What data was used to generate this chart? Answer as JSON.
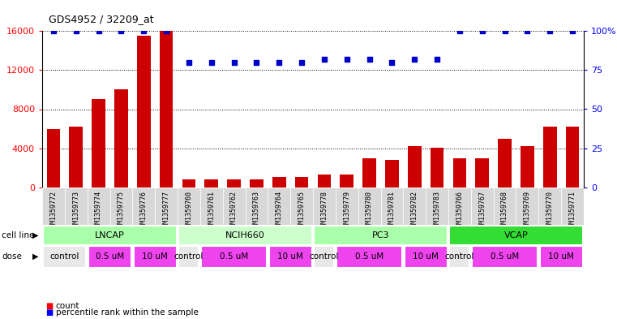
{
  "title": "GDS4952 / 32209_at",
  "samples": [
    "GSM1359772",
    "GSM1359773",
    "GSM1359774",
    "GSM1359775",
    "GSM1359776",
    "GSM1359777",
    "GSM1359760",
    "GSM1359761",
    "GSM1359762",
    "GSM1359763",
    "GSM1359764",
    "GSM1359765",
    "GSM1359778",
    "GSM1359779",
    "GSM1359780",
    "GSM1359781",
    "GSM1359782",
    "GSM1359783",
    "GSM1359766",
    "GSM1359767",
    "GSM1359768",
    "GSM1359769",
    "GSM1359770",
    "GSM1359771"
  ],
  "counts": [
    6000,
    6200,
    9000,
    10000,
    15500,
    16000,
    800,
    800,
    800,
    800,
    1100,
    1100,
    1300,
    1300,
    3000,
    2800,
    4200,
    4100,
    3000,
    3000,
    5000,
    4200,
    6200,
    6200
  ],
  "percentile_ranks": [
    100,
    100,
    100,
    100,
    100,
    100,
    80,
    80,
    80,
    80,
    80,
    80,
    82,
    82,
    82,
    80,
    82,
    82,
    100,
    100,
    100,
    100,
    100,
    100
  ],
  "cell_lines": [
    {
      "name": "LNCAP",
      "start": 0,
      "end": 6,
      "color": "#AAFFAA"
    },
    {
      "name": "NCIH660",
      "start": 6,
      "end": 12,
      "color": "#CCFFCC"
    },
    {
      "name": "PC3",
      "start": 12,
      "end": 18,
      "color": "#AAFFAA"
    },
    {
      "name": "VCAP",
      "start": 18,
      "end": 24,
      "color": "#33DD33"
    }
  ],
  "dose_groups": [
    {
      "label": "control",
      "start": 0,
      "end": 2,
      "color": "#E8E8E8"
    },
    {
      "label": "0.5 uM",
      "start": 2,
      "end": 4,
      "color": "#EE44EE"
    },
    {
      "label": "10 uM",
      "start": 4,
      "end": 6,
      "color": "#EE44EE"
    },
    {
      "label": "control",
      "start": 6,
      "end": 7,
      "color": "#E8E8E8"
    },
    {
      "label": "0.5 uM",
      "start": 7,
      "end": 10,
      "color": "#EE44EE"
    },
    {
      "label": "10 uM",
      "start": 10,
      "end": 12,
      "color": "#EE44EE"
    },
    {
      "label": "control",
      "start": 12,
      "end": 13,
      "color": "#E8E8E8"
    },
    {
      "label": "0.5 uM",
      "start": 13,
      "end": 16,
      "color": "#EE44EE"
    },
    {
      "label": "10 uM",
      "start": 16,
      "end": 18,
      "color": "#EE44EE"
    },
    {
      "label": "control",
      "start": 18,
      "end": 19,
      "color": "#E8E8E8"
    },
    {
      "label": "0.5 uM",
      "start": 19,
      "end": 22,
      "color": "#EE44EE"
    },
    {
      "label": "10 uM",
      "start": 22,
      "end": 24,
      "color": "#EE44EE"
    }
  ],
  "bar_color": "#CC0000",
  "dot_color": "#0000CC",
  "ylim_left": [
    0,
    16000
  ],
  "ylim_right": [
    0,
    100
  ],
  "yticks_left": [
    0,
    4000,
    8000,
    12000,
    16000
  ],
  "yticks_right": [
    0,
    25,
    50,
    75,
    100
  ],
  "tick_bg_color": "#D0D0D0",
  "chart_bg_color": "#FFFFFF"
}
